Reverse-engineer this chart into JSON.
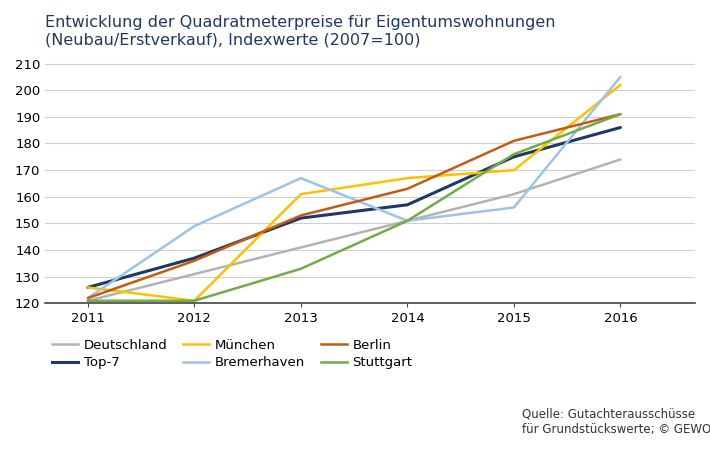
{
  "title": "Entwicklung der Quadratmeterpreise für Eigentumswohnungen\n(Neubau/Erstverkauf), Indexwerte (2007=100)",
  "years": [
    2011,
    2012,
    2013,
    2014,
    2015,
    2016
  ],
  "series": [
    {
      "name": "Deutschland",
      "values": [
        121,
        131,
        141,
        151,
        161,
        174
      ],
      "color": "#b3b3b3",
      "linewidth": 1.8
    },
    {
      "name": "Top-7",
      "values": [
        126,
        137,
        152,
        157,
        175,
        186
      ],
      "color": "#1f3864",
      "linewidth": 2.2
    },
    {
      "name": "München",
      "values": [
        126,
        121,
        161,
        167,
        170,
        202
      ],
      "color": "#ffc000",
      "linewidth": 1.8
    },
    {
      "name": "Bremerhaven",
      "values": [
        122,
        149,
        167,
        151,
        156,
        205
      ],
      "color": "#9dc3e6",
      "linewidth": 1.8
    },
    {
      "name": "Berlin",
      "values": [
        122,
        136,
        153,
        163,
        181,
        191
      ],
      "color": "#c55a11",
      "linewidth": 1.8
    },
    {
      "name": "Stuttgart",
      "values": [
        121,
        121,
        133,
        151,
        176,
        191
      ],
      "color": "#70ad47",
      "linewidth": 1.8
    }
  ],
  "ylim": [
    120,
    213
  ],
  "yticks": [
    120,
    130,
    140,
    150,
    160,
    170,
    180,
    190,
    200,
    210
  ],
  "xlim": [
    2010.6,
    2016.7
  ],
  "xticks": [
    2011,
    2012,
    2013,
    2014,
    2015,
    2016
  ],
  "title_color": "#1f3864",
  "title_fontsize": 11.5,
  "tick_fontsize": 9.5,
  "legend_fontsize": 9.5,
  "source_text": "Quelle: Gutachterausschüsse\nfür Grundstückswerte; © GEWOS",
  "source_fontsize": 8.5,
  "background_color": "#ffffff",
  "grid_color": "#d0d0d0"
}
